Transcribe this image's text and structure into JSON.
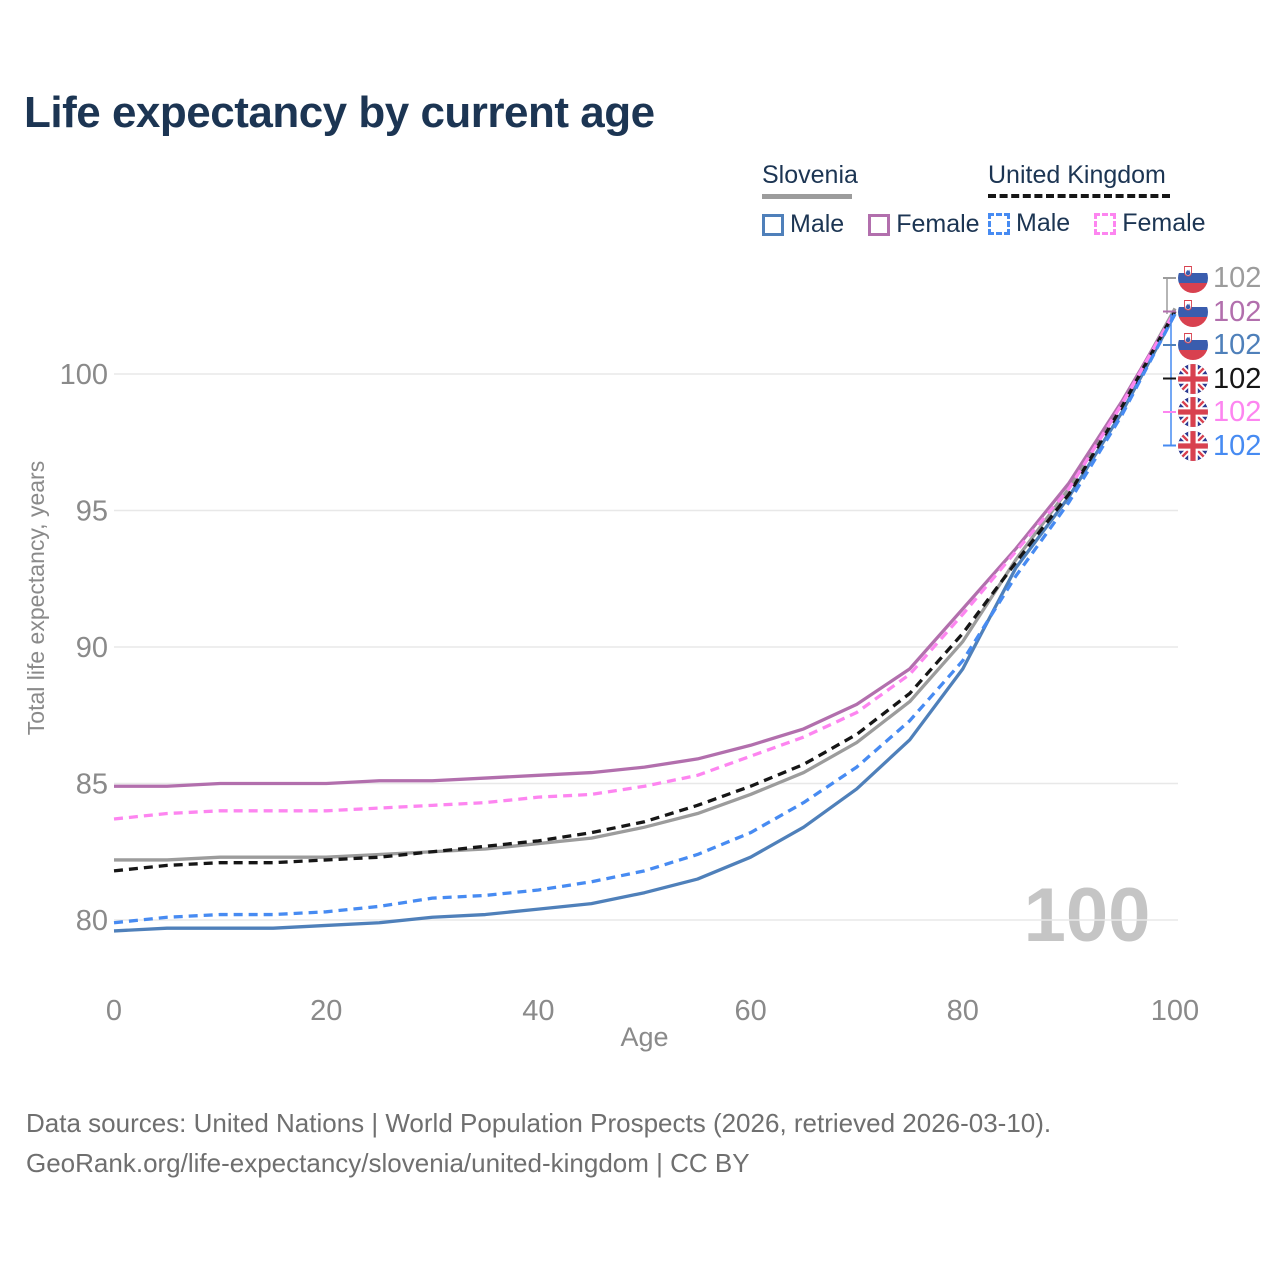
{
  "title": "Life expectancy by current age",
  "palette": {
    "background": "#ffffff",
    "title": "#1c3553",
    "legend_text": "#1c3553",
    "axis_text": "#8a8a8a",
    "grid": "#e8e8e8",
    "watermark": "#c5c5c5",
    "footer": "#6f6f6f"
  },
  "legend": {
    "groups": [
      {
        "label": "Slovenia",
        "underline_color": "#9c9c9c",
        "underline_style": "solid",
        "items": [
          {
            "label": "Male",
            "color": "#4f80ba",
            "style": "solid"
          },
          {
            "label": "Female",
            "color": "#b26fad",
            "style": "solid"
          }
        ]
      },
      {
        "label": "United Kingdom",
        "underline_color": "#161616",
        "underline_style": "dashed",
        "items": [
          {
            "label": "Male",
            "color": "#478bf2",
            "style": "dashed"
          },
          {
            "label": "Female",
            "color": "#fd85f0",
            "style": "dashed"
          }
        ]
      }
    ]
  },
  "chart_data": {
    "type": "line",
    "title": "Life expectancy by current age",
    "xlabel": "Age",
    "ylabel": "Total life expectancy, years",
    "x_ticks": [
      0,
      20,
      40,
      60,
      80,
      100
    ],
    "y_ticks": [
      80,
      85,
      90,
      95,
      100
    ],
    "xlim": [
      0,
      100
    ],
    "ylim": [
      78.8,
      102.6
    ],
    "grid": "horizontal",
    "legend_position": "top-right",
    "hover_age_label": "100",
    "ages": [
      0,
      5,
      10,
      15,
      20,
      25,
      30,
      35,
      40,
      45,
      50,
      55,
      60,
      65,
      70,
      75,
      80,
      85,
      90,
      95,
      100
    ],
    "series": [
      {
        "id": "si-both",
        "name": "Slovenia",
        "country": "si",
        "sex": "both",
        "line": "solid",
        "color": "#9c9c9c",
        "end_label": "102",
        "values": [
          82.2,
          82.2,
          82.3,
          82.3,
          82.3,
          82.4,
          82.5,
          82.6,
          82.8,
          83.0,
          83.4,
          83.9,
          84.6,
          85.4,
          86.5,
          88.0,
          90.2,
          93.2,
          95.8,
          98.9,
          102.4
        ]
      },
      {
        "id": "si-female",
        "name": "Slovenia Female",
        "country": "si",
        "sex": "female",
        "line": "solid",
        "color": "#b26fad",
        "end_label": "102",
        "values": [
          84.9,
          84.9,
          85.0,
          85.0,
          85.0,
          85.1,
          85.1,
          85.2,
          85.3,
          85.4,
          85.6,
          85.9,
          86.4,
          87.0,
          87.9,
          89.2,
          91.4,
          93.6,
          96.0,
          99.0,
          102.3
        ]
      },
      {
        "id": "si-male",
        "name": "Slovenia Male",
        "country": "si",
        "sex": "male",
        "line": "solid",
        "color": "#4f80ba",
        "end_label": "102",
        "values": [
          79.6,
          79.7,
          79.7,
          79.7,
          79.8,
          79.9,
          80.1,
          80.2,
          80.4,
          80.6,
          81.0,
          81.5,
          82.3,
          83.4,
          84.8,
          86.6,
          89.2,
          92.9,
          95.5,
          98.6,
          102.2
        ]
      },
      {
        "id": "uk-both",
        "name": "United Kingdom",
        "country": "uk",
        "sex": "both",
        "line": "dashed",
        "color": "#161616",
        "end_label": "102",
        "values": [
          81.8,
          82.0,
          82.1,
          82.1,
          82.2,
          82.3,
          82.5,
          82.7,
          82.9,
          83.2,
          83.6,
          84.2,
          84.9,
          85.7,
          86.8,
          88.3,
          90.5,
          93.1,
          95.6,
          98.8,
          102.3
        ]
      },
      {
        "id": "uk-female",
        "name": "United Kingdom Female",
        "country": "uk",
        "sex": "female",
        "line": "dashed",
        "color": "#fd85f0",
        "end_label": "102",
        "values": [
          83.7,
          83.9,
          84.0,
          84.0,
          84.0,
          84.1,
          84.2,
          84.3,
          84.5,
          84.6,
          84.9,
          85.3,
          86.0,
          86.7,
          87.6,
          89.0,
          91.2,
          93.5,
          95.8,
          98.9,
          102.3
        ]
      },
      {
        "id": "uk-male",
        "name": "United Kingdom Male",
        "country": "uk",
        "sex": "male",
        "line": "dashed",
        "color": "#478bf2",
        "end_label": "102",
        "values": [
          79.9,
          80.1,
          80.2,
          80.2,
          80.3,
          80.5,
          80.8,
          80.9,
          81.1,
          81.4,
          81.8,
          82.4,
          83.2,
          84.3,
          85.6,
          87.3,
          89.5,
          92.6,
          95.3,
          98.5,
          102.2
        ]
      }
    ]
  },
  "footer": {
    "line1": "Data sources: United Nations | World Population Prospects (2026, retrieved 2026-03-10).",
    "line2": "GeoRank.org/life-expectancy/slovenia/united-kingdom | CC BY"
  }
}
